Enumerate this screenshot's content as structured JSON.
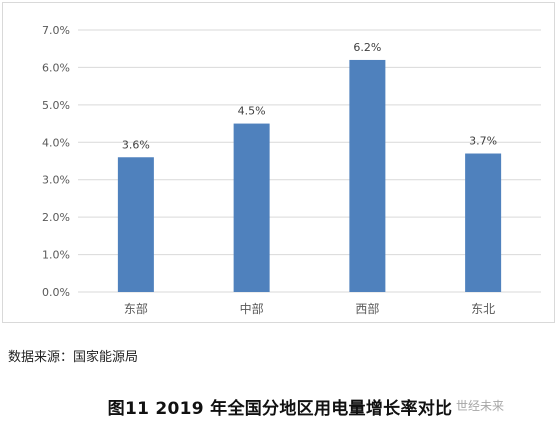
{
  "chart_data": {
    "type": "bar",
    "categories": [
      "东部",
      "中部",
      "西部",
      "东北"
    ],
    "values": [
      3.6,
      4.5,
      6.2,
      3.7
    ],
    "data_labels": [
      "3.6%",
      "4.5%",
      "6.2%",
      "3.7%"
    ],
    "y_ticks": [
      "0.0%",
      "1.0%",
      "2.0%",
      "3.0%",
      "4.0%",
      "5.0%",
      "6.0%",
      "7.0%"
    ],
    "ylim": [
      0,
      7
    ],
    "grid": true,
    "bar_color": "#4f81bd",
    "gridline_color": "#d9d9d9"
  },
  "source_note": "数据来源：国家能源局",
  "caption": "图11    2019 年全国分地区用电量增长率对比",
  "watermark": "世经未来"
}
